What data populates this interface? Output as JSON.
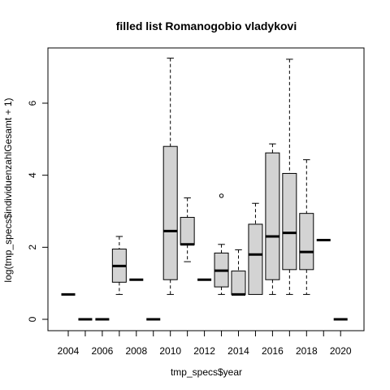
{
  "chart_data": {
    "type": "boxplot",
    "title": "filled list Romanogobio vladykovi",
    "xlabel": "tmp_specs$year",
    "ylabel": "log(tmp_specs$individuenzahlGesamt + 1)",
    "ylim": [
      -0.3,
      7.6
    ],
    "y_ticks": [
      0,
      2,
      4,
      6
    ],
    "x_tick_labels": [
      "2004",
      "2006",
      "2008",
      "2010",
      "2012",
      "2014",
      "2016",
      "2018",
      "2020"
    ],
    "fill_color": "#d3d3d3",
    "grid": false,
    "boxes": [
      {
        "year": "2004",
        "min": 0.69,
        "q1": 0.69,
        "median": 0.69,
        "q3": 0.69,
        "max": 0.69,
        "outliers": []
      },
      {
        "year": "2005",
        "min": 0,
        "q1": 0,
        "median": 0,
        "q3": 0,
        "max": 0,
        "outliers": []
      },
      {
        "year": "2006",
        "min": 0,
        "q1": 0,
        "median": 0,
        "q3": 0,
        "max": 0,
        "outliers": []
      },
      {
        "year": "2007",
        "min": 0.69,
        "q1": 1.03,
        "median": 1.48,
        "q3": 1.95,
        "max": 2.3,
        "outliers": []
      },
      {
        "year": "2008",
        "min": 1.1,
        "q1": 1.1,
        "median": 1.1,
        "q3": 1.1,
        "max": 1.1,
        "outliers": []
      },
      {
        "year": "2009",
        "min": 0,
        "q1": 0,
        "median": 0,
        "q3": 0,
        "max": 0,
        "outliers": []
      },
      {
        "year": "2010",
        "min": 0.69,
        "q1": 1.1,
        "median": 2.45,
        "q3": 4.8,
        "max": 7.25,
        "outliers": []
      },
      {
        "year": "2011",
        "min": 1.6,
        "q1": 2.07,
        "median": 2.08,
        "q3": 2.83,
        "max": 3.37,
        "outliers": []
      },
      {
        "year": "2012",
        "min": 1.1,
        "q1": 1.1,
        "median": 1.1,
        "q3": 1.1,
        "max": 1.1,
        "outliers": []
      },
      {
        "year": "2013",
        "min": 0.69,
        "q1": 0.9,
        "median": 1.35,
        "q3": 1.84,
        "max": 2.08,
        "outliers": [
          3.43
        ]
      },
      {
        "year": "2014",
        "min": 0.69,
        "q1": 0.69,
        "median": 0.69,
        "q3": 1.34,
        "max": 1.93,
        "outliers": []
      },
      {
        "year": "2015",
        "min": 0.69,
        "q1": 0.69,
        "median": 1.8,
        "q3": 2.64,
        "max": 3.22,
        "outliers": []
      },
      {
        "year": "2016",
        "min": 0.69,
        "q1": 1.1,
        "median": 2.3,
        "q3": 4.62,
        "max": 4.87,
        "outliers": []
      },
      {
        "year": "2017",
        "min": 0.69,
        "q1": 1.38,
        "median": 2.4,
        "q3": 4.05,
        "max": 7.22,
        "outliers": []
      },
      {
        "year": "2018",
        "min": 0.69,
        "q1": 1.38,
        "median": 1.87,
        "q3": 2.94,
        "max": 4.43,
        "outliers": []
      },
      {
        "year": "2019",
        "min": 2.2,
        "q1": 2.2,
        "median": 2.2,
        "q3": 2.2,
        "max": 2.2,
        "outliers": []
      },
      {
        "year": "2020",
        "min": 0,
        "q1": 0,
        "median": 0,
        "q3": 0,
        "max": 0,
        "outliers": []
      }
    ]
  }
}
